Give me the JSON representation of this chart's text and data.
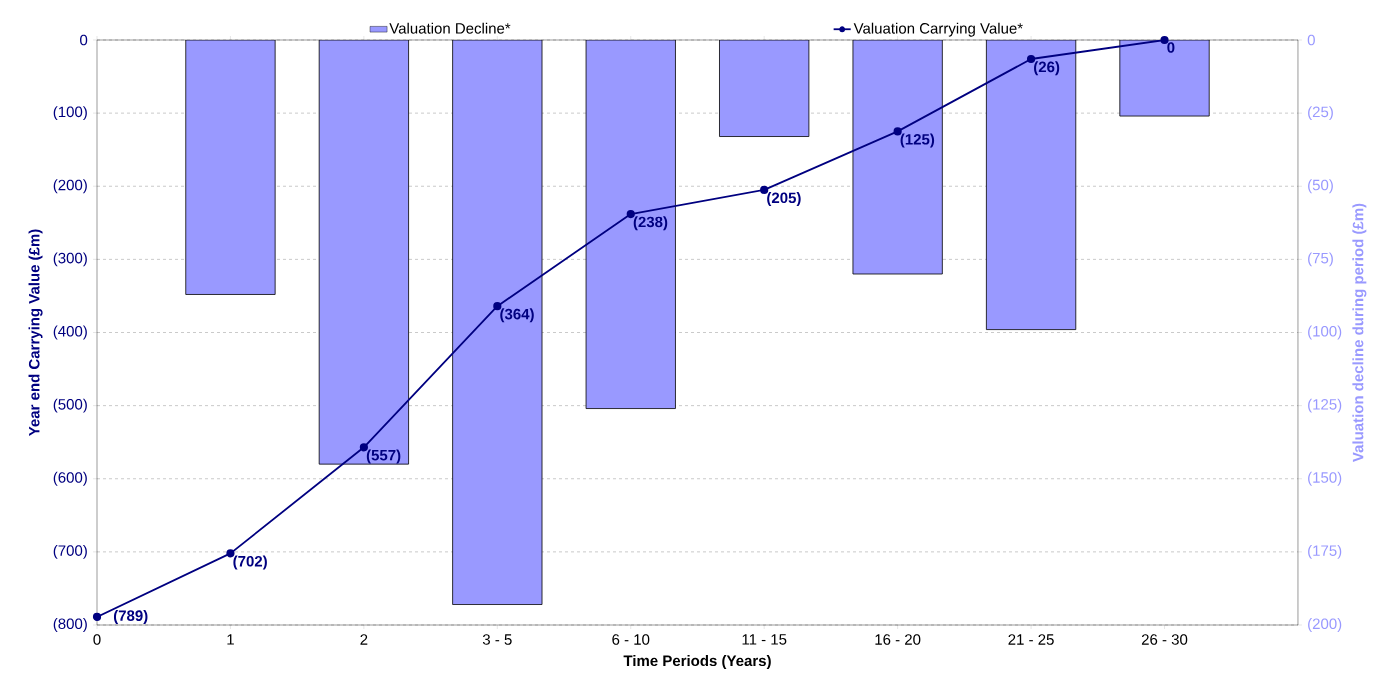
{
  "chart_data": {
    "type": "bar",
    "categories": [
      "0",
      "1",
      "2",
      "3 - 5",
      "6 - 10",
      "11 - 15",
      "16 - 20",
      "21 - 25",
      "26 - 30"
    ],
    "xlabel": "Time Periods (Years)",
    "ylabel": "Year end Carrying Value (£m)",
    "y2label": "Valuation decline during period (£m)",
    "ylim": [
      -800,
      0
    ],
    "yticks": [
      {
        "value": -800,
        "label": "(800)"
      },
      {
        "value": -700,
        "label": "(700)"
      },
      {
        "value": -600,
        "label": "(600)"
      },
      {
        "value": -500,
        "label": "(500)"
      },
      {
        "value": -400,
        "label": "(400)"
      },
      {
        "value": -300,
        "label": "(300)"
      },
      {
        "value": -200,
        "label": "(200)"
      },
      {
        "value": -100,
        "label": "(100)"
      },
      0
    ],
    "y2lim": [
      200,
      0
    ],
    "y2ticks": [
      {
        "value": 200,
        "label": "(200)"
      },
      {
        "value": 175,
        "label": "(175)"
      },
      {
        "value": 150,
        "label": "(150)"
      },
      {
        "value": 125,
        "label": "(125)"
      },
      {
        "value": 100,
        "label": "(100)"
      },
      {
        "value": 75,
        "label": "(75)"
      },
      {
        "value": 50,
        "label": "(50)"
      },
      {
        "value": 25,
        "label": "(25)"
      },
      0
    ],
    "grid": "y",
    "legend": "top",
    "marker": "circle",
    "series": [
      {
        "name": "Valuation Decline*",
        "axis": "y2",
        "color": "#9999ff",
        "values": [
          null,
          87,
          145,
          193,
          126,
          33,
          80,
          99,
          26
        ]
      },
      {
        "name": "Valuation Carrying Value*",
        "type": "line",
        "axis": "y",
        "color": "#000080",
        "values": [
          -789,
          -702,
          -557,
          -364,
          -238,
          -205,
          -125,
          -26,
          0
        ],
        "value_labels": [
          "(789)",
          "(702)",
          "(557)",
          "(364)",
          "(238)",
          "(205)",
          "(125)",
          "(26)",
          "0"
        ]
      }
    ]
  }
}
